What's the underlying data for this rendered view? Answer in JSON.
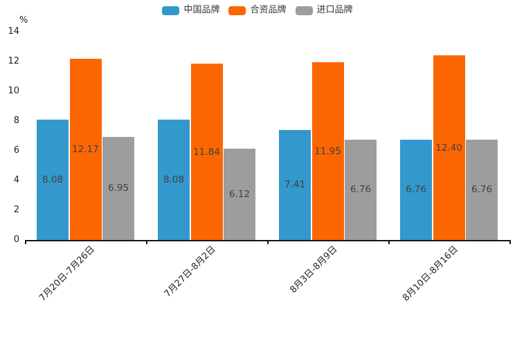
{
  "chart_data": {
    "type": "bar",
    "ylabel": "%",
    "categories": [
      "7月20日-7月26日",
      "7月27日-8月2日",
      "8月3日-8月9日",
      "8月10日-8月16日"
    ],
    "series": [
      {
        "name": "中国品牌",
        "color": "#3398cc",
        "values": [
          8.08,
          8.08,
          7.41,
          6.76
        ]
      },
      {
        "name": "合资品牌",
        "color": "#fc6600",
        "values": [
          12.17,
          11.84,
          11.95,
          12.4
        ]
      },
      {
        "name": "进口品牌",
        "color": "#9d9d9d",
        "values": [
          6.95,
          6.12,
          6.76,
          6.76
        ]
      }
    ],
    "value_labels": [
      "8.08",
      "12.17",
      "6.95",
      "8.08",
      "11.84",
      "6.12",
      "7.41",
      "11.95",
      "6.76",
      "6.76",
      "12.40",
      "6.76"
    ],
    "ylim": [
      0,
      14
    ],
    "yticks": [
      0,
      2,
      4,
      6,
      8,
      10,
      12,
      14
    ],
    "legend_position": "top",
    "grid": false,
    "value_label_position": "inside-center"
  }
}
